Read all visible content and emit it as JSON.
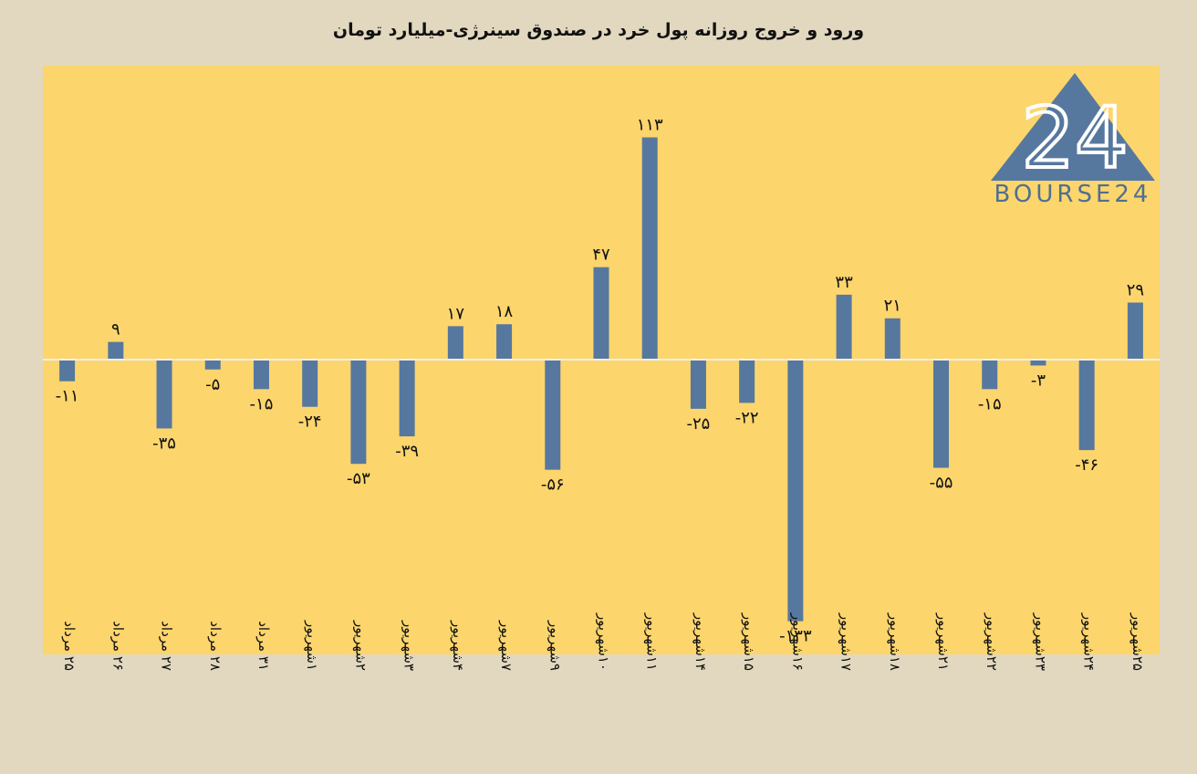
{
  "chart_data": {
    "type": "bar",
    "title": "ورود و خروج روزانه پول خرد در صندوق سینرژی-میلیارد تومان",
    "categories": [
      "۲۵ مرداد",
      "۲۶ مرداد",
      "۲۷ مرداد",
      "۲۸ مرداد",
      "۳۱ مرداد",
      "۱شهریور",
      "۲شهریور",
      "۳شهریور",
      "۴شهریور",
      "۷شهریور",
      "۹شهریور",
      "۱۰شهریور",
      "۱۱شهریور",
      "۱۴شهریور",
      "۱۵شهریور",
      "۱۶شهریور",
      "۱۷شهریور",
      "۱۸شهریور",
      "۲۱شهریور",
      "۲۲شهریور",
      "۲۳شهریور",
      "۲۴شهریور",
      "۲۵شهریور"
    ],
    "values": [
      -11,
      9,
      -35,
      -5,
      -15,
      -24,
      -53,
      -39,
      17,
      18,
      -56,
      47,
      113,
      -25,
      -22,
      -133,
      33,
      21,
      -55,
      -15,
      -3,
      -46,
      29
    ],
    "value_labels": [
      "-۱۱",
      "۹",
      "-۳۵",
      "-۵",
      "-۱۵",
      "-۲۴",
      "-۵۳",
      "-۳۹",
      "۱۷",
      "۱۸",
      "-۵۶",
      "۴۷",
      "۱۱۳",
      "-۲۵",
      "-۲۲",
      "-۱۳۳",
      "۳۳",
      "۲۱",
      "-۵۵",
      "-۱۵",
      "-۳",
      "-۴۶",
      "۲۹"
    ],
    "ylim": [
      -150,
      150
    ],
    "xlabel": "",
    "ylabel": "",
    "grid": false,
    "colors": {
      "bar": "#56789f",
      "plot_bg": "#fcd56d",
      "page_bg": "#e2d8bf",
      "zero_line": "#eeeeee"
    }
  },
  "logo": {
    "text": "BOURSE24",
    "mark": "24",
    "icon": "bourse24-triangle-logo"
  }
}
